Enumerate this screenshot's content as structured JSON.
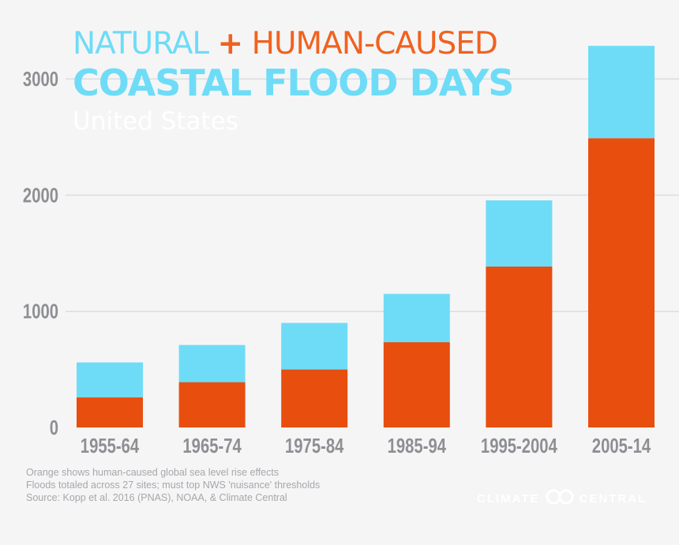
{
  "title": {
    "natural": "NATURAL",
    "plus": "+",
    "human": "HUMAN-CAUSED",
    "line2": "COASTAL FLOOD DAYS",
    "subtitle": "United States"
  },
  "notes": [
    "Orange shows human-caused global sea level rise effects",
    "Floods totaled across 27 sites; must top NWS 'nuisance' thresholds",
    "Source: Kopp et al. 2016 (PNAS), NOAA, & Climate Central"
  ],
  "logo": {
    "left": "CLIMATE",
    "right": "CENTRAL",
    "icon": "climate-central-logo-icon"
  },
  "colors": {
    "natural": "#6edcf7",
    "human": "#e84e0e",
    "grid": "#dcdcdf",
    "tick": "#8e8f93",
    "background": "#f5f5f6"
  },
  "chart_data": {
    "type": "bar",
    "stacked": true,
    "categories": [
      "1955-64",
      "1965-74",
      "1975-84",
      "1985-94",
      "1995-2004",
      "2005-14"
    ],
    "series": [
      {
        "name": "HUMAN-CAUSED",
        "values": [
          260,
          390,
          500,
          735,
          1385,
          2490
        ]
      },
      {
        "name": "NATURAL",
        "values": [
          300,
          320,
          400,
          415,
          570,
          795
        ]
      }
    ],
    "totals": [
      560,
      710,
      900,
      1150,
      1955,
      3285
    ],
    "yticks": [
      0,
      1000,
      2000,
      3000
    ],
    "ylim": [
      0,
      3300
    ],
    "grid": true
  }
}
